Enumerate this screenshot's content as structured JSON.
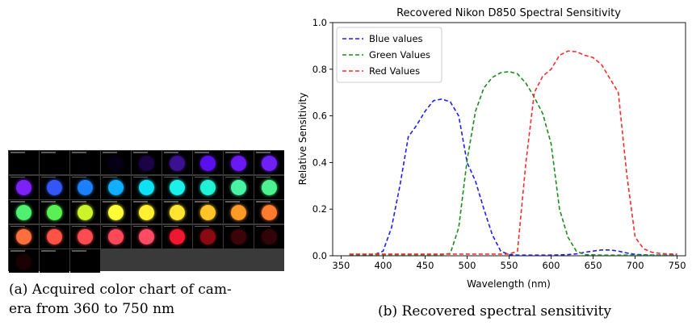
{
  "color_chart": {
    "rows": [
      [
        "#000000",
        "#000000",
        "#010003",
        "#060016",
        "#1b0445",
        "#3a1290",
        "#5a10ec",
        "#6b18f5",
        "#6f20f7"
      ],
      [
        "#7b22f8",
        "#3456f8",
        "#1c80fb",
        "#11b0fd",
        "#10e0f3",
        "#1cf0e8",
        "#21f2d6",
        "#4af2a6",
        "#4df290"
      ],
      [
        "#50f070",
        "#5aef55",
        "#ccf22a",
        "#ffff36",
        "#fff030",
        "#ffe530",
        "#ffc528",
        "#ff9a26",
        "#ff7c2e"
      ],
      [
        "#ff6f3e",
        "#ff5346",
        "#ff4c50",
        "#ff4858",
        "#ff4c64",
        "#f01830",
        "#8a0a12",
        "#3a0408",
        "#300408"
      ],
      [
        "#1a0204",
        "#000000",
        "#000000"
      ]
    ]
  },
  "captions": {
    "a_line1": "(a) Acquired color chart of cam-",
    "a_line2": "era from 360 to 750 nm",
    "b": "(b) Recovered spectral sensitivity"
  },
  "chart_data": {
    "type": "line",
    "title": "Recovered Nikon D850 Spectral Sensitivity",
    "xlabel": "Wavelength (nm)",
    "ylabel": "Relative  Sensitivity",
    "xlim": [
      340,
      760
    ],
    "ylim": [
      0,
      1.0
    ],
    "xticks": [
      350,
      400,
      450,
      500,
      550,
      600,
      650,
      700,
      750
    ],
    "yticks": [
      0.0,
      0.2,
      0.4,
      0.6,
      0.8,
      1.0
    ],
    "legend_position": "top-left",
    "x": [
      360,
      370,
      380,
      390,
      400,
      410,
      420,
      430,
      440,
      450,
      460,
      470,
      480,
      490,
      500,
      510,
      520,
      530,
      540,
      550,
      560,
      570,
      580,
      590,
      600,
      610,
      620,
      630,
      640,
      650,
      660,
      670,
      680,
      690,
      700,
      710,
      720,
      730,
      740,
      750
    ],
    "series": [
      {
        "name": "Blue values",
        "color": "#1f1ff0",
        "values": [
          0.005,
          0.005,
          0.005,
          0.005,
          0.02,
          0.12,
          0.3,
          0.51,
          0.56,
          0.62,
          0.665,
          0.672,
          0.66,
          0.6,
          0.4,
          0.32,
          0.2,
          0.09,
          0.02,
          0.005,
          0.003,
          0.003,
          0.003,
          0.003,
          0.003,
          0.004,
          0.005,
          0.008,
          0.015,
          0.02,
          0.025,
          0.025,
          0.02,
          0.012,
          0.006,
          0.004,
          0.003,
          0.003,
          0.003,
          0.003
        ]
      },
      {
        "name": "Green Values",
        "color": "#1f8a1f",
        "values": [
          0.005,
          0.005,
          0.005,
          0.005,
          0.005,
          0.005,
          0.005,
          0.005,
          0.005,
          0.005,
          0.005,
          0.005,
          0.01,
          0.12,
          0.41,
          0.62,
          0.72,
          0.765,
          0.785,
          0.79,
          0.78,
          0.74,
          0.68,
          0.61,
          0.48,
          0.2,
          0.08,
          0.02,
          0.005,
          0.004,
          0.003,
          0.003,
          0.003,
          0.003,
          0.003,
          0.003,
          0.003,
          0.003,
          0.003,
          0.003
        ]
      },
      {
        "name": "Red Values",
        "color": "#f03030",
        "values": [
          0.007,
          0.007,
          0.007,
          0.007,
          0.007,
          0.007,
          0.007,
          0.007,
          0.007,
          0.007,
          0.007,
          0.007,
          0.007,
          0.007,
          0.007,
          0.007,
          0.007,
          0.007,
          0.007,
          0.007,
          0.02,
          0.4,
          0.7,
          0.77,
          0.8,
          0.86,
          0.878,
          0.875,
          0.86,
          0.85,
          0.82,
          0.76,
          0.7,
          0.35,
          0.08,
          0.03,
          0.015,
          0.01,
          0.008,
          0.007
        ]
      }
    ]
  }
}
